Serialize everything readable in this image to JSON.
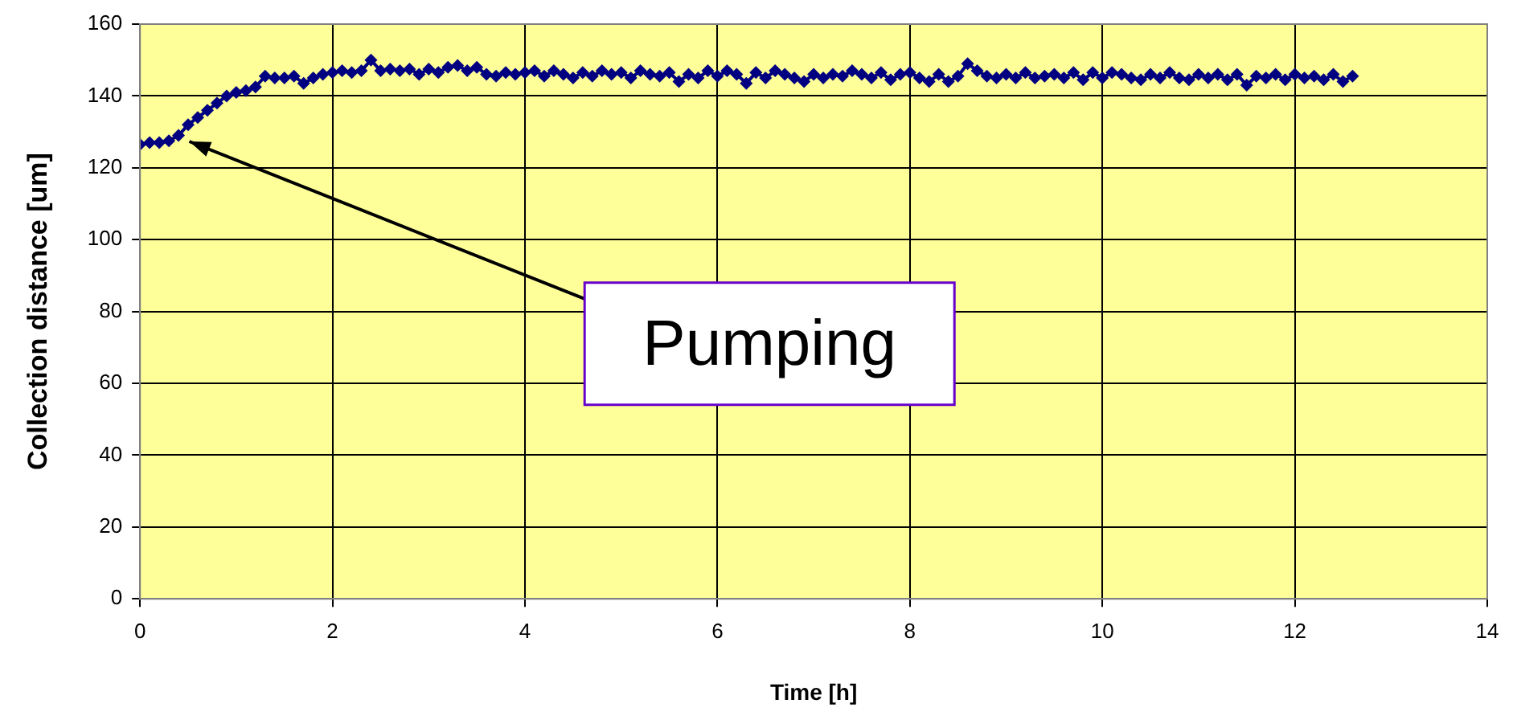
{
  "chart_data": {
    "type": "line",
    "xlabel": "Time [h]",
    "ylabel": "Collection distance [um]",
    "xlim": [
      0,
      14
    ],
    "xticks": [
      0,
      2,
      4,
      6,
      8,
      10,
      12,
      14
    ],
    "ylim": [
      0,
      160
    ],
    "yticks": [
      0,
      20,
      40,
      60,
      80,
      100,
      120,
      140,
      160
    ],
    "grid": true,
    "legend": false,
    "marker": "diamond",
    "annotations": [
      {
        "text": "Pumping",
        "x": 0.45,
        "y": 128
      }
    ],
    "series": [
      {
        "color": "#000080",
        "x": [
          0,
          0.1,
          0.2,
          0.3,
          0.4,
          0.5,
          0.6,
          0.7,
          0.8,
          0.9,
          1,
          1.1,
          1.2,
          1.3,
          1.4,
          1.5,
          1.6,
          1.7,
          1.8,
          1.9,
          2,
          2.1,
          2.2,
          2.3,
          2.4,
          2.5,
          2.6,
          2.7,
          2.8,
          2.9,
          3,
          3.1,
          3.2,
          3.3,
          3.4,
          3.5,
          3.6,
          3.7,
          3.8,
          3.9,
          4,
          4.1,
          4.2,
          4.3,
          4.4,
          4.5,
          4.6,
          4.7,
          4.8,
          4.9,
          5,
          5.1,
          5.2,
          5.3,
          5.4,
          5.5,
          5.6,
          5.7,
          5.8,
          5.9,
          6,
          6.1,
          6.2,
          6.3,
          6.4,
          6.5,
          6.6,
          6.7,
          6.8,
          6.9,
          7,
          7.1,
          7.2,
          7.3,
          7.4,
          7.5,
          7.6,
          7.7,
          7.8,
          7.9,
          8,
          8.1,
          8.2,
          8.3,
          8.4,
          8.5,
          8.6,
          8.7,
          8.8,
          8.9,
          9,
          9.1,
          9.2,
          9.3,
          9.4,
          9.5,
          9.6,
          9.7,
          9.8,
          9.9,
          10,
          10.1,
          10.2,
          10.3,
          10.4,
          10.5,
          10.6,
          10.7,
          10.8,
          10.9,
          11,
          11.1,
          11.2,
          11.3,
          11.4,
          11.5,
          11.6,
          11.7,
          11.8,
          11.9,
          12,
          12.1,
          12.2,
          12.3,
          12.4,
          12.5,
          12.6
        ],
        "values": [
          126.5,
          127,
          127,
          127.5,
          129,
          132,
          134,
          136,
          138,
          140,
          141,
          141.5,
          142.5,
          145.5,
          145,
          145,
          145.5,
          143.5,
          145,
          146,
          146.5,
          147,
          146.5,
          147,
          150,
          147,
          147.5,
          147,
          147.5,
          146,
          147.5,
          146.5,
          148,
          148.5,
          147,
          148,
          146,
          145.5,
          146.5,
          146,
          146.5,
          147,
          145.5,
          147,
          146,
          145,
          146.5,
          145.5,
          147,
          146,
          146.5,
          145,
          147,
          146,
          145.5,
          146.5,
          144,
          146,
          145,
          147,
          145.5,
          147,
          146,
          143.5,
          146.5,
          145,
          147,
          146,
          145,
          144,
          146,
          145,
          146,
          145.5,
          147,
          146,
          145,
          146.5,
          144.5,
          146,
          146.5,
          145,
          144,
          146,
          144,
          145.5,
          149,
          147,
          145.5,
          145,
          146,
          145,
          146.5,
          145,
          145.5,
          146,
          145,
          146.5,
          144.5,
          146.5,
          145,
          146.5,
          146,
          145,
          144.5,
          146,
          145,
          146.5,
          145,
          144.5,
          146,
          145,
          146,
          144.5,
          146,
          143,
          145.5,
          145,
          146,
          144.5,
          146,
          145,
          145.5,
          144.5,
          146,
          144,
          145.5
        ]
      }
    ]
  }
}
